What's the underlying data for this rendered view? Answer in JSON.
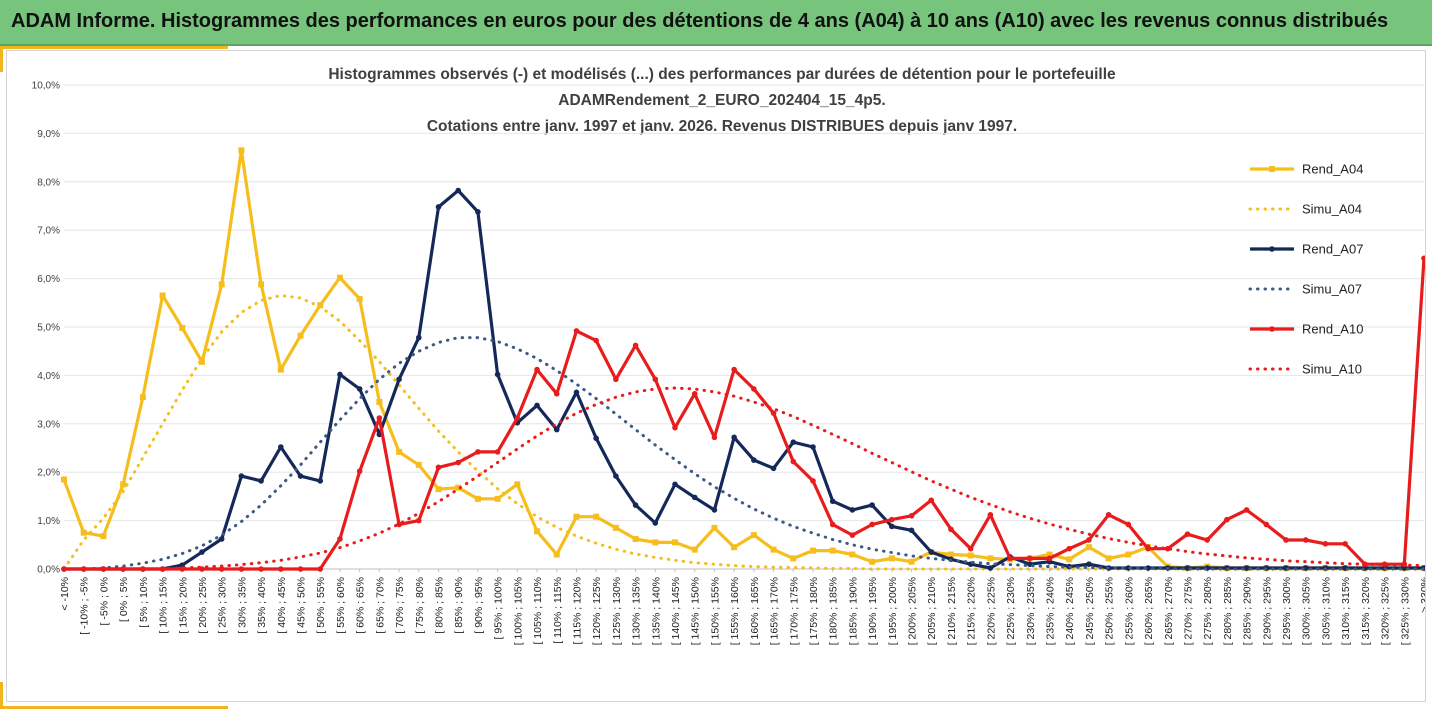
{
  "header": {
    "title": "ADAM Informe. Histogrammes des performances en euros pour des détentions de 4 ans (A04) à 10 ans (A10) avec les revenus connus distribués"
  },
  "colors": {
    "header_bg": "#77c47c",
    "accent": "#f2b51d",
    "a04": "#f5be1c",
    "a07": "#15285a",
    "a07_simu": "#3c5a85",
    "a10": "#e81c1c"
  },
  "chart_data": {
    "type": "line",
    "title_lines": [
      "Histogrammes observés (-) et modélisés (...) des performances par durées de détention pour le portefeuille",
      "ADAMRendement_2_EURO_202404_15_4p5.",
      "Cotations entre janv. 1997 et janv. 2026. Revenus DISTRIBUES depuis janv 1997."
    ],
    "ylim": [
      0,
      10
    ],
    "y_ticks": [
      "0,0%",
      "1,0%",
      "2,0%",
      "3,0%",
      "4,0%",
      "5,0%",
      "6,0%",
      "7,0%",
      "8,0%",
      "9,0%",
      "10,0%"
    ],
    "categories": [
      "< -10%",
      "[ -10% ; -5%",
      "[ -5% ; 0%",
      "[ 0% ; 5%",
      "[ 5% ; 10%",
      "[ 10% ; 15%",
      "[ 15% ; 20%",
      "[ 20% ; 25%",
      "[ 25% ; 30%",
      "[ 30% ; 35%",
      "[ 35% ; 40%",
      "[ 40% ; 45%",
      "[ 45% ; 50%",
      "[ 50% ; 55%",
      "[ 55% ; 60%",
      "[ 60% ; 65%",
      "[ 65% ; 70%",
      "[ 70% ; 75%",
      "[ 75% ; 80%",
      "[ 80% ; 85%",
      "[ 85% ; 90%",
      "[ 90% ; 95%",
      "[ 95% ; 100%",
      "[ 100% ; 105%",
      "[ 105% ; 110%",
      "[ 110% ; 115%",
      "[ 115% ; 120%",
      "[ 120% ; 125%",
      "[ 125% ; 130%",
      "[ 130% ; 135%",
      "[ 135% ; 140%",
      "[ 140% ; 145%",
      "[ 145% ; 150%",
      "[ 150% ; 155%",
      "[ 155% ; 160%",
      "[ 160% ; 165%",
      "[ 165% ; 170%",
      "[ 170% ; 175%",
      "[ 175% ; 180%",
      "[ 180% ; 185%",
      "[ 185% ; 190%",
      "[ 190% ; 195%",
      "[ 195% ; 200%",
      "[ 200% ; 205%",
      "[ 205% ; 210%",
      "[ 210% ; 215%",
      "[ 215% ; 220%",
      "[ 220% ; 225%",
      "[ 225% ; 230%",
      "[ 230% ; 235%",
      "[ 235% ; 240%",
      "[ 240% ; 245%",
      "[ 245% ; 250%",
      "[ 250% ; 255%",
      "[ 255% ; 260%",
      "[ 260% ; 265%",
      "[ 265% ; 270%",
      "[ 270% ; 275%",
      "[ 275% ; 280%",
      "[ 280% ; 285%",
      "[ 285% ; 290%",
      "[ 290% ; 295%",
      "[ 295% ; 300%",
      "[ 300% ; 305%",
      "[ 305% ; 310%",
      "[ 310% ; 315%",
      "[ 315% ; 320%",
      "[ 320% ; 325%",
      "[ 325% ; 330%",
      "> 330%"
    ],
    "series": [
      {
        "name": "Rend_A04",
        "style": "solid",
        "marker": "square",
        "color": "#f5be1c",
        "values": [
          1.85,
          0.75,
          0.68,
          1.75,
          3.55,
          5.65,
          4.98,
          4.28,
          5.88,
          8.65,
          5.88,
          4.12,
          4.82,
          5.45,
          6.02,
          5.58,
          3.45,
          2.42,
          2.15,
          1.65,
          1.68,
          1.45,
          1.45,
          1.75,
          0.78,
          0.3,
          1.08,
          1.08,
          0.85,
          0.62,
          0.55,
          0.55,
          0.4,
          0.85,
          0.45,
          0.7,
          0.4,
          0.22,
          0.38,
          0.38,
          0.3,
          0.15,
          0.22,
          0.15,
          0.35,
          0.3,
          0.28,
          0.22,
          0.2,
          0.22,
          0.3,
          0.2,
          0.45,
          0.22,
          0.3,
          0.45,
          0.05,
          0.02,
          0.05,
          0.02,
          0.02,
          0.02,
          0.02,
          0.02,
          0.02,
          0.02,
          0.02,
          0.02,
          0.02,
          0.02
        ]
      },
      {
        "name": "Simu_A04",
        "style": "dotted",
        "marker": "none",
        "color": "#f5be1c",
        "values": [
          0.0,
          0.6,
          1.05,
          1.6,
          2.3,
          3.0,
          3.7,
          4.35,
          4.9,
          5.3,
          5.55,
          5.65,
          5.6,
          5.42,
          5.12,
          4.72,
          4.28,
          3.8,
          3.32,
          2.85,
          2.42,
          2.02,
          1.66,
          1.35,
          1.08,
          0.86,
          0.68,
          0.53,
          0.41,
          0.31,
          0.24,
          0.18,
          0.13,
          0.1,
          0.07,
          0.05,
          0.04,
          0.03,
          0.02,
          0.01,
          0.01,
          0.0,
          0.0,
          0.0,
          0.0,
          0.0,
          0.0,
          0.0,
          0.0,
          0.0,
          0.0,
          0.0,
          0.0,
          0.0,
          0.0,
          0.0,
          0.0,
          0.0,
          0.0,
          0.0,
          0.0,
          0.0,
          0.0,
          0.0,
          0.0,
          0.0,
          0.0,
          0.0,
          0.0,
          0.0
        ]
      },
      {
        "name": "Rend_A07",
        "style": "solid",
        "marker": "circle",
        "color": "#15285a",
        "values": [
          0.0,
          0.0,
          0.0,
          0.0,
          0.0,
          0.0,
          0.08,
          0.35,
          0.62,
          1.92,
          1.82,
          2.52,
          1.92,
          1.82,
          4.02,
          3.72,
          2.78,
          3.92,
          4.78,
          7.48,
          7.82,
          7.38,
          4.02,
          3.02,
          3.38,
          2.88,
          3.65,
          2.7,
          1.92,
          1.32,
          0.95,
          1.75,
          1.48,
          1.22,
          2.72,
          2.25,
          2.08,
          2.62,
          2.52,
          1.4,
          1.22,
          1.32,
          0.88,
          0.8,
          0.35,
          0.2,
          0.1,
          0.02,
          0.25,
          0.1,
          0.15,
          0.05,
          0.1,
          0.02,
          0.02,
          0.02,
          0.02,
          0.02,
          0.02,
          0.02,
          0.02,
          0.02,
          0.02,
          0.02,
          0.02,
          0.02,
          0.02,
          0.02,
          0.02,
          0.02
        ]
      },
      {
        "name": "Simu_A07",
        "style": "dotted",
        "marker": "none",
        "color": "#3c5a85",
        "values": [
          0.0,
          0.0,
          0.02,
          0.06,
          0.12,
          0.2,
          0.32,
          0.48,
          0.7,
          0.98,
          1.32,
          1.72,
          2.15,
          2.62,
          3.08,
          3.52,
          3.92,
          4.25,
          4.5,
          4.68,
          4.78,
          4.78,
          4.7,
          4.55,
          4.35,
          4.1,
          3.82,
          3.52,
          3.2,
          2.88,
          2.56,
          2.26,
          1.97,
          1.7,
          1.46,
          1.24,
          1.05,
          0.88,
          0.74,
          0.61,
          0.5,
          0.41,
          0.34,
          0.27,
          0.22,
          0.18,
          0.14,
          0.11,
          0.09,
          0.07,
          0.05,
          0.04,
          0.03,
          0.02,
          0.02,
          0.01,
          0.01,
          0.0,
          0.0,
          0.0,
          0.0,
          0.0,
          0.0,
          0.0,
          0.0,
          0.0,
          0.0,
          0.0,
          0.0,
          0.0
        ]
      },
      {
        "name": "Rend_A10",
        "style": "solid",
        "marker": "circle",
        "color": "#e81c1c",
        "values": [
          0.0,
          0.0,
          0.0,
          0.0,
          0.0,
          0.0,
          0.0,
          0.0,
          0.0,
          0.0,
          0.0,
          0.0,
          0.0,
          0.0,
          0.62,
          2.02,
          3.12,
          0.92,
          1.0,
          2.1,
          2.2,
          2.42,
          2.42,
          3.12,
          4.12,
          3.62,
          4.92,
          4.72,
          3.92,
          4.62,
          3.92,
          2.92,
          3.62,
          2.72,
          4.12,
          3.72,
          3.22,
          2.22,
          1.82,
          0.92,
          0.7,
          0.92,
          1.02,
          1.1,
          1.42,
          0.82,
          0.42,
          1.12,
          0.22,
          0.22,
          0.22,
          0.42,
          0.6,
          1.12,
          0.92,
          0.42,
          0.42,
          0.72,
          0.6,
          1.02,
          1.22,
          0.92,
          0.6,
          0.6,
          0.52,
          0.52,
          0.1,
          0.1,
          0.1,
          6.42
        ]
      },
      {
        "name": "Simu_A10",
        "style": "dotted",
        "marker": "none",
        "color": "#e81c1c",
        "values": [
          0.0,
          0.0,
          0.0,
          0.0,
          0.0,
          0.0,
          0.02,
          0.04,
          0.06,
          0.09,
          0.13,
          0.18,
          0.25,
          0.33,
          0.44,
          0.58,
          0.74,
          0.93,
          1.15,
          1.39,
          1.65,
          1.92,
          2.2,
          2.48,
          2.75,
          3.0,
          3.22,
          3.4,
          3.55,
          3.66,
          3.72,
          3.74,
          3.72,
          3.66,
          3.57,
          3.45,
          3.31,
          3.15,
          2.97,
          2.78,
          2.59,
          2.39,
          2.2,
          2.01,
          1.82,
          1.65,
          1.48,
          1.33,
          1.18,
          1.05,
          0.93,
          0.82,
          0.72,
          0.63,
          0.55,
          0.48,
          0.42,
          0.36,
          0.31,
          0.27,
          0.23,
          0.2,
          0.17,
          0.15,
          0.13,
          0.11,
          0.1,
          0.09,
          0.08,
          0.07
        ]
      }
    ],
    "legend_placement": "right"
  }
}
